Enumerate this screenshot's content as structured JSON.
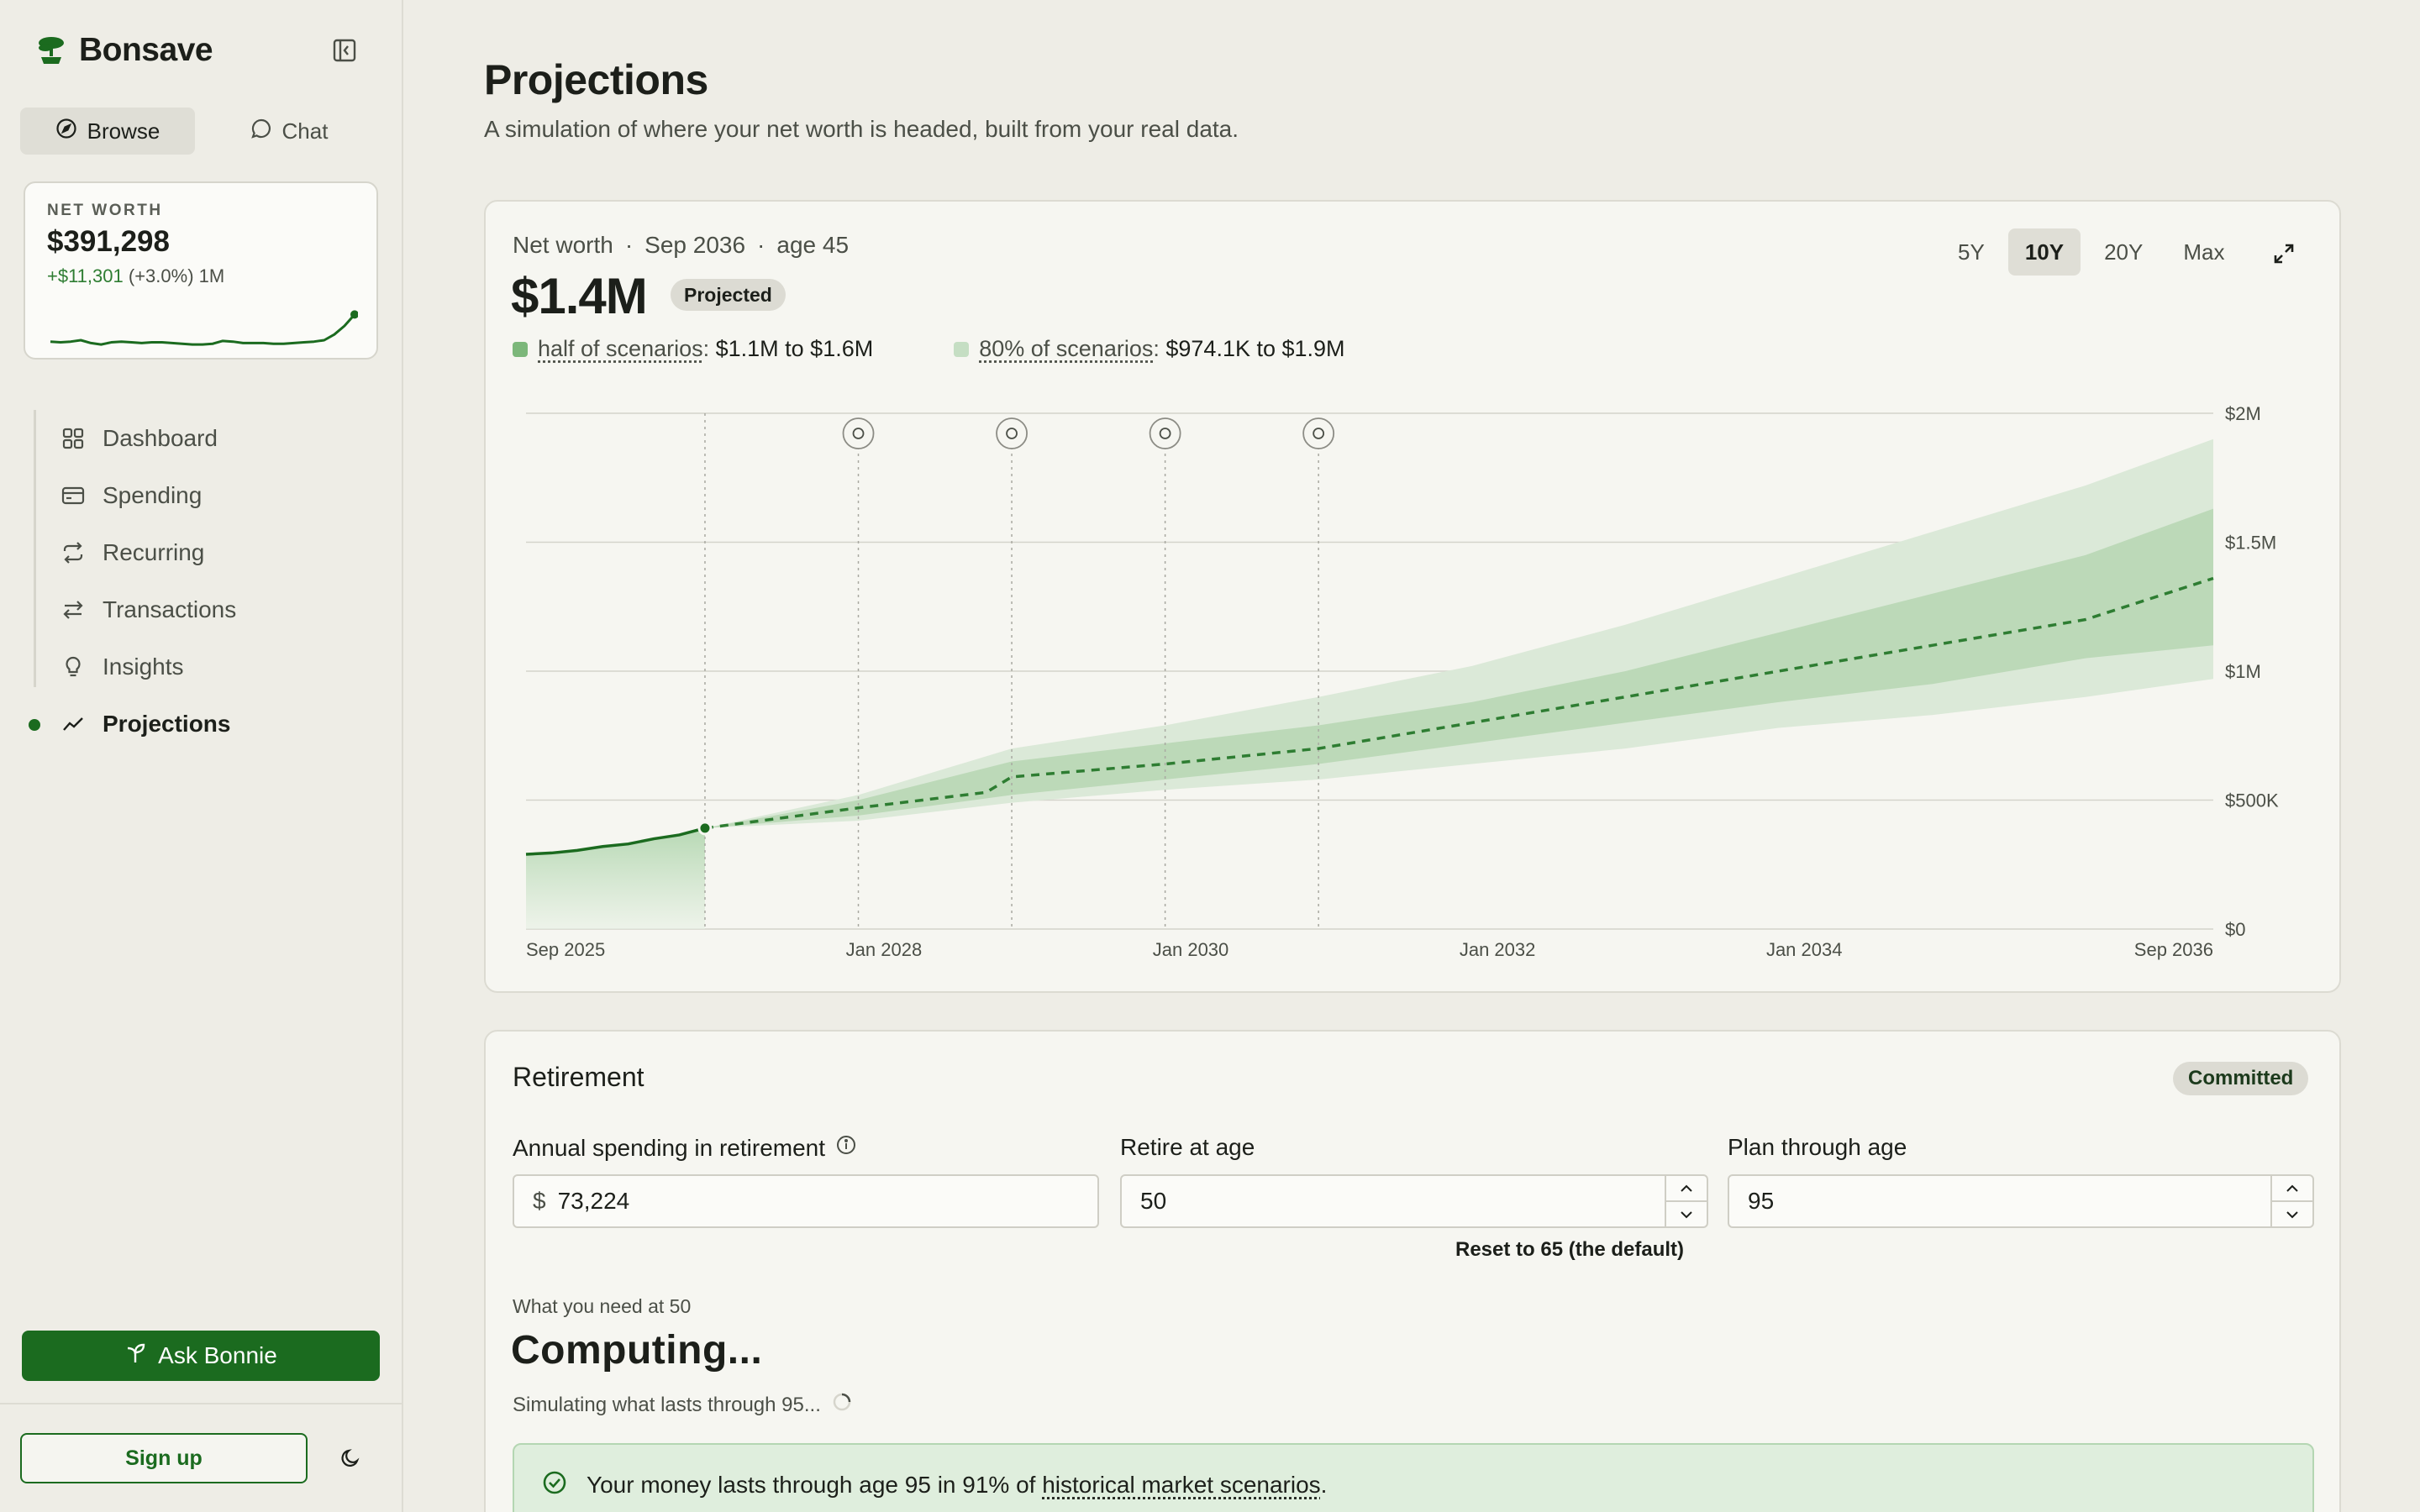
{
  "app": {
    "name": "Bonsave",
    "icons": {
      "logo": "bonsai-tree-icon",
      "collapse": "sidebar-collapse-icon"
    }
  },
  "modes": [
    {
      "label": "Browse",
      "icon": "compass-icon",
      "active": true
    },
    {
      "label": "Chat",
      "icon": "chat-bubble-icon",
      "active": false
    }
  ],
  "net_worth_card": {
    "label": "NET WORTH",
    "value": "$391,298",
    "change": "+$11,301",
    "change_pct": "(+3.0%) 1M",
    "sparkline": [
      62,
      63,
      62,
      60,
      64,
      66,
      63,
      62,
      63,
      64,
      63,
      63,
      64,
      65,
      66,
      66,
      65,
      61,
      62,
      64,
      64,
      64,
      65,
      65,
      64,
      63,
      62,
      60,
      52,
      40,
      24
    ]
  },
  "nav": [
    {
      "label": "Dashboard",
      "icon": "dashboard-grid-icon",
      "active": false
    },
    {
      "label": "Spending",
      "icon": "credit-card-icon",
      "active": false
    },
    {
      "label": "Recurring",
      "icon": "repeat-icon",
      "active": false
    },
    {
      "label": "Transactions",
      "icon": "arrows-swap-icon",
      "active": false
    },
    {
      "label": "Insights",
      "icon": "lightbulb-icon",
      "active": false
    },
    {
      "label": "Projections",
      "icon": "trend-line-icon",
      "active": true
    }
  ],
  "ask_button": {
    "label": "Ask Bonnie",
    "icon": "sprout-icon"
  },
  "signup_button": {
    "label": "Sign up"
  },
  "theme_toggle": {
    "icon": "moon-icon"
  },
  "page": {
    "title": "Projections",
    "subtitle": "A simulation of where your net worth is headed, built from your real data."
  },
  "projection": {
    "meta_label": "Net worth",
    "meta_date": "Sep 2036",
    "meta_age": "age 45",
    "value": "$1.4M",
    "badge": "Projected",
    "legend": [
      {
        "name": "half of scenarios",
        "range": "$1.1M to $1.6M",
        "color": "#7cb77a"
      },
      {
        "name": "80% of scenarios",
        "range": "$974.1K to $1.9M",
        "color": "#c5dec3"
      }
    ],
    "ranges": [
      {
        "label": "5Y",
        "active": false
      },
      {
        "label": "10Y",
        "active": true
      },
      {
        "label": "20Y",
        "active": false
      },
      {
        "label": "Max",
        "active": false
      }
    ],
    "expand_icon": "expand-arrows-icon"
  },
  "chart_data": {
    "type": "area",
    "title": "",
    "xlabel": "",
    "ylabel": "",
    "ylim": [
      0,
      2000000
    ],
    "y_ticks": [
      0,
      500000,
      1000000,
      1500000,
      2000000
    ],
    "y_tick_labels": [
      "$0",
      "$500K",
      "$1M",
      "$1.5M",
      "$2M"
    ],
    "x_range": [
      "2025-09",
      "2036-09"
    ],
    "x_tick_labels": [
      "Sep 2025",
      "Jan 2028",
      "Jan 2030",
      "Jan 2032",
      "Jan 2034",
      "Sep 2036"
    ],
    "x_tick_dates": [
      "2025-09",
      "2028-01",
      "2030-01",
      "2032-01",
      "2034-01",
      "2036-09"
    ],
    "grid": true,
    "events": [
      {
        "date": "2026-11",
        "icon": "today-marker"
      },
      {
        "date": "2027-11",
        "icon": "trend-up-icon"
      },
      {
        "date": "2028-11",
        "icon": "gift-icon"
      },
      {
        "date": "2029-11",
        "icon": "shopping-bag-icon"
      },
      {
        "date": "2030-11",
        "icon": "trend-down-icon"
      }
    ],
    "series": [
      {
        "kind": "historical",
        "x": [
          "2025-09",
          "2025-11",
          "2026-01",
          "2026-03",
          "2026-05",
          "2026-07",
          "2026-09",
          "2026-11"
        ],
        "values": [
          290000,
          295000,
          305000,
          320000,
          330000,
          350000,
          365000,
          391298
        ]
      },
      {
        "kind": "median",
        "x": [
          "2026-11",
          "2027-11",
          "2028-09",
          "2028-11",
          "2029-11",
          "2030-11",
          "2031-11",
          "2032-11",
          "2033-11",
          "2034-11",
          "2035-11",
          "2036-09"
        ],
        "values": [
          391298,
          470000,
          530000,
          590000,
          640000,
          700000,
          800000,
          900000,
          1000000,
          1100000,
          1200000,
          1360000
        ]
      },
      {
        "kind": "p25",
        "x": [
          "2026-11",
          "2027-11",
          "2028-11",
          "2029-11",
          "2030-11",
          "2031-11",
          "2032-11",
          "2033-11",
          "2034-11",
          "2035-11",
          "2036-09"
        ],
        "values": [
          391298,
          440000,
          520000,
          580000,
          640000,
          720000,
          800000,
          880000,
          950000,
          1050000,
          1100000
        ]
      },
      {
        "kind": "p75",
        "x": [
          "2026-11",
          "2027-11",
          "2028-11",
          "2029-11",
          "2030-11",
          "2031-11",
          "2032-11",
          "2033-11",
          "2034-11",
          "2035-11",
          "2036-09"
        ],
        "values": [
          391298,
          500000,
          650000,
          720000,
          790000,
          880000,
          1000000,
          1150000,
          1300000,
          1450000,
          1630000
        ]
      },
      {
        "kind": "p10",
        "x": [
          "2026-11",
          "2027-11",
          "2028-11",
          "2029-11",
          "2030-11",
          "2031-11",
          "2032-11",
          "2033-11",
          "2034-11",
          "2035-11",
          "2036-09"
        ],
        "values": [
          391298,
          420000,
          490000,
          540000,
          580000,
          640000,
          700000,
          780000,
          830000,
          900000,
          970000
        ]
      },
      {
        "kind": "p90",
        "x": [
          "2026-11",
          "2027-11",
          "2028-11",
          "2029-11",
          "2030-11",
          "2031-11",
          "2032-11",
          "2033-11",
          "2034-11",
          "2035-11",
          "2036-09"
        ],
        "values": [
          391298,
          520000,
          700000,
          790000,
          900000,
          1020000,
          1180000,
          1360000,
          1540000,
          1720000,
          1900000
        ]
      }
    ]
  },
  "retirement": {
    "title": "Retirement",
    "badge": "Committed",
    "spending_label": "Annual spending in retirement",
    "spending_info_icon": "info-circle-icon",
    "spending_prefix": "$",
    "spending_value": "73,224",
    "retire_label": "Retire at age",
    "retire_value": "50",
    "plan_label": "Plan through age",
    "plan_value": "95",
    "reset_text": "Reset to 65 (the default)",
    "need_label": "What you need at 50",
    "computing": "Computing...",
    "simulating": "Simulating what lasts through 95...",
    "result_prefix": "Your money lasts through age 95 in 91% of ",
    "result_link": "historical market scenarios",
    "result_suffix": ".",
    "result_icon": "check-circle-icon"
  }
}
